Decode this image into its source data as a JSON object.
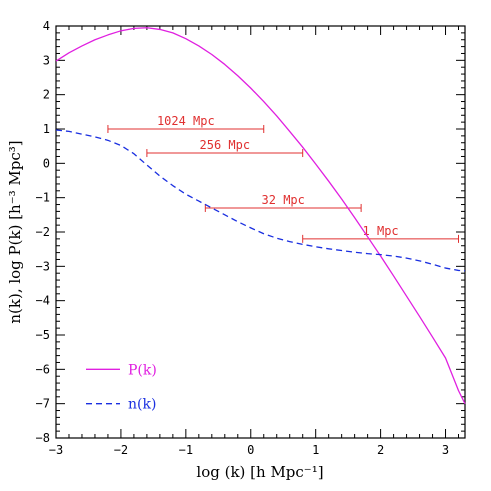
{
  "chart_data": {
    "type": "line",
    "title": "",
    "xlabel": "log (k) [h Mpc⁻¹]",
    "ylabel": "n(k), log P(k) [h⁻³ Mpc³]",
    "xlim": [
      -3,
      3.3
    ],
    "ylim": [
      -8,
      4
    ],
    "grid": false,
    "legend_position": "bottom-left",
    "x_ticks": [
      -3,
      -2,
      -1,
      0,
      1,
      2,
      3
    ],
    "x_tick_labels": [
      "−3",
      "−2",
      "−1",
      "0",
      "1",
      "2",
      "3"
    ],
    "y_ticks": [
      -8,
      -7,
      -6,
      -5,
      -4,
      -3,
      -2,
      -1,
      0,
      1,
      2,
      3,
      4
    ],
    "y_tick_labels": [
      "−8",
      "−7",
      "−6",
      "−5",
      "−4",
      "−3",
      "−2",
      "−1",
      "0",
      "1",
      "2",
      "3",
      "4"
    ],
    "series": [
      {
        "name": "P(k)",
        "color": "#e020e0",
        "style": "solid",
        "x": [
          -3.0,
          -2.8,
          -2.6,
          -2.4,
          -2.2,
          -2.0,
          -1.8,
          -1.6,
          -1.4,
          -1.2,
          -1.0,
          -0.8,
          -0.6,
          -0.4,
          -0.2,
          0.0,
          0.2,
          0.4,
          0.6,
          0.8,
          1.0,
          1.2,
          1.4,
          1.6,
          1.8,
          2.0,
          2.2,
          2.4,
          2.6,
          2.8,
          3.0,
          3.2,
          3.3
        ],
        "y": [
          2.98,
          3.22,
          3.42,
          3.6,
          3.74,
          3.86,
          3.93,
          3.95,
          3.9,
          3.8,
          3.63,
          3.42,
          3.17,
          2.88,
          2.55,
          2.19,
          1.8,
          1.38,
          0.93,
          0.47,
          -0.02,
          -0.52,
          -1.04,
          -1.58,
          -2.14,
          -2.7,
          -3.28,
          -3.87,
          -4.46,
          -5.06,
          -5.67,
          -6.62,
          -7.0
        ]
      },
      {
        "name": "n(k)",
        "color": "#1a2fe0",
        "style": "dashed",
        "x": [
          -3.0,
          -2.8,
          -2.6,
          -2.4,
          -2.2,
          -2.0,
          -1.8,
          -1.6,
          -1.4,
          -1.2,
          -1.0,
          -0.8,
          -0.6,
          -0.4,
          -0.2,
          0.0,
          0.2,
          0.4,
          0.6,
          0.8,
          1.0,
          1.2,
          1.4,
          1.6,
          1.8,
          2.0,
          2.2,
          2.4,
          2.6,
          2.8,
          3.0,
          3.2,
          3.3
        ],
        "y": [
          0.97,
          0.93,
          0.85,
          0.77,
          0.67,
          0.52,
          0.28,
          -0.05,
          -0.37,
          -0.65,
          -0.9,
          -1.1,
          -1.3,
          -1.5,
          -1.7,
          -1.88,
          -2.05,
          -2.18,
          -2.28,
          -2.36,
          -2.43,
          -2.49,
          -2.54,
          -2.59,
          -2.63,
          -2.66,
          -2.7,
          -2.76,
          -2.84,
          -2.94,
          -3.05,
          -3.12,
          -3.13
        ]
      }
    ],
    "annotations": [
      {
        "text": "1024 Mpc",
        "x1": -2.2,
        "x2": 0.2,
        "y": 1.0,
        "color": "#e03030"
      },
      {
        "text": "256 Mpc",
        "x1": -1.6,
        "x2": 0.8,
        "y": 0.3,
        "color": "#e03030"
      },
      {
        "text": "32 Mpc",
        "x1": -0.7,
        "x2": 1.7,
        "y": -1.3,
        "color": "#e03030"
      },
      {
        "text": "1 Mpc",
        "x1": 0.8,
        "x2": 3.2,
        "y": -2.2,
        "color": "#e03030"
      }
    ]
  }
}
